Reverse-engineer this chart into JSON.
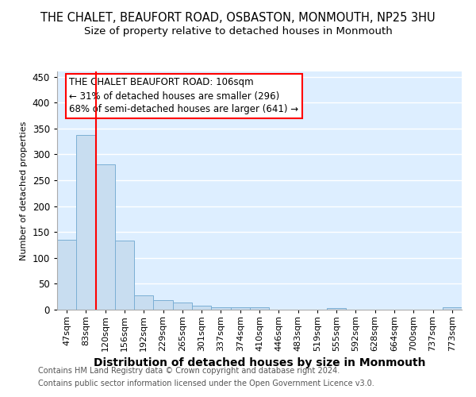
{
  "title": "THE CHALET, BEAUFORT ROAD, OSBASTON, MONMOUTH, NP25 3HU",
  "subtitle": "Size of property relative to detached houses in Monmouth",
  "xlabel": "Distribution of detached houses by size in Monmouth",
  "ylabel": "Number of detached properties",
  "footnote1": "Contains HM Land Registry data © Crown copyright and database right 2024.",
  "footnote2": "Contains public sector information licensed under the Open Government Licence v3.0.",
  "annotation_title": "THE CHALET BEAUFORT ROAD: 106sqm",
  "annotation_line1": "← 31% of detached houses are smaller (296)",
  "annotation_line2": "68% of semi-detached houses are larger (641) →",
  "bar_color": "#c8ddf0",
  "bar_edge_color": "#7bafd4",
  "red_line_color": "red",
  "red_line_bin_index": 2,
  "categories": [
    "47sqm",
    "83sqm",
    "120sqm",
    "156sqm",
    "192sqm",
    "229sqm",
    "265sqm",
    "301sqm",
    "337sqm",
    "374sqm",
    "410sqm",
    "446sqm",
    "483sqm",
    "519sqm",
    "555sqm",
    "592sqm",
    "628sqm",
    "664sqm",
    "700sqm",
    "737sqm",
    "773sqm"
  ],
  "values": [
    135,
    337,
    280,
    133,
    27,
    18,
    14,
    8,
    5,
    4,
    4,
    0,
    0,
    0,
    3,
    0,
    0,
    0,
    0,
    0,
    4
  ],
  "ylim": [
    0,
    460
  ],
  "yticks": [
    0,
    50,
    100,
    150,
    200,
    250,
    300,
    350,
    400,
    450
  ],
  "background_color": "#ddeeff",
  "grid_color": "#ffffff",
  "title_fontsize": 10.5,
  "subtitle_fontsize": 9.5,
  "footnote_fontsize": 7,
  "xlabel_fontsize": 10,
  "ylabel_fontsize": 8,
  "xtick_fontsize": 8,
  "ytick_fontsize": 8.5,
  "annotation_fontsize": 8.5
}
